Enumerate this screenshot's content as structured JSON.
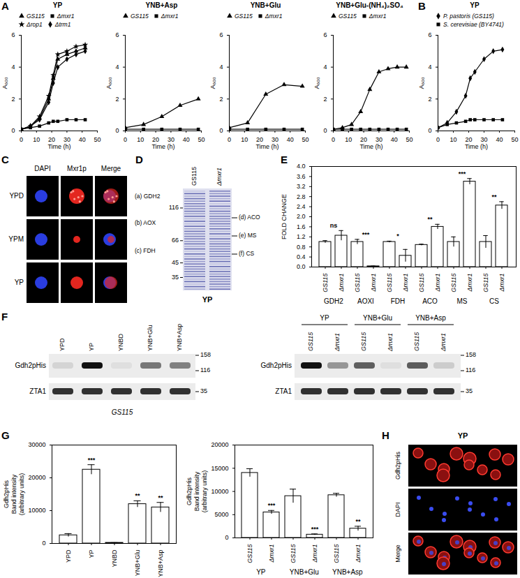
{
  "chart_data": [
    {
      "type": "line",
      "panel": "A",
      "title": "YP",
      "x_label": "Time (h)",
      "y_label": "A₆₀₀",
      "x": [
        0,
        6,
        12,
        18,
        21,
        24,
        30,
        36,
        42
      ],
      "series": [
        {
          "name": "GS115",
          "color": "#000000",
          "marker": "triangle",
          "values": [
            0.1,
            0.3,
            0.8,
            2.0,
            3.3,
            4.5,
            4.8,
            5.0,
            5.2
          ]
        },
        {
          "name": "Δmxr1",
          "color": "#000000",
          "marker": "square",
          "values": [
            0.1,
            0.2,
            0.3,
            0.5,
            0.6,
            0.6,
            0.7,
            0.7,
            0.7
          ]
        },
        {
          "name": "Δrop1",
          "color": "#000000",
          "marker": "star",
          "values": [
            0.1,
            0.3,
            0.9,
            2.2,
            3.5,
            4.8,
            5.0,
            5.3,
            5.4
          ]
        },
        {
          "name": "Δtrm1",
          "color": "#000000",
          "marker": "diamond",
          "values": [
            0.1,
            0.3,
            0.7,
            1.8,
            3.0,
            4.0,
            4.5,
            4.8,
            5.0
          ]
        }
      ],
      "xlim": [
        0,
        50
      ],
      "xticks": [
        0,
        10,
        20,
        30,
        40,
        50
      ],
      "ylim": [
        0,
        6
      ],
      "yticks": [
        0,
        2,
        4,
        6
      ],
      "legend": "top"
    },
    {
      "type": "line",
      "title": "YNB+Asp",
      "x_label": "Time (h)",
      "y_label": "A₆₀₀",
      "x": [
        0,
        12,
        24,
        36,
        48
      ],
      "series": [
        {
          "name": "GS115",
          "color": "#000000",
          "marker": "triangle",
          "values": [
            0.2,
            0.4,
            0.9,
            1.6,
            2.0
          ]
        },
        {
          "name": "Δmxr1",
          "color": "#000000",
          "marker": "square",
          "values": [
            0.1,
            0.1,
            0.1,
            0.1,
            0.1
          ]
        }
      ],
      "xlim": [
        0,
        50
      ],
      "xticks": [
        0,
        10,
        20,
        30,
        40,
        50
      ],
      "ylim": [
        0,
        6
      ],
      "yticks": [
        0,
        2,
        4,
        6
      ],
      "legend": "top"
    },
    {
      "type": "line",
      "title": "YNB+Glu",
      "x_label": "Time (h)",
      "y_label": "A₆₀₀",
      "x": [
        0,
        12,
        24,
        36,
        48
      ],
      "series": [
        {
          "name": "GS115",
          "color": "#000000",
          "marker": "triangle",
          "values": [
            0.2,
            0.5,
            2.3,
            2.9,
            2.8
          ]
        },
        {
          "name": "Δmxr1",
          "color": "#000000",
          "marker": "square",
          "values": [
            0.1,
            0.1,
            0.1,
            0.1,
            0.1
          ]
        }
      ],
      "xlim": [
        0,
        50
      ],
      "xticks": [
        0,
        10,
        20,
        30,
        40,
        50
      ],
      "ylim": [
        0,
        6
      ],
      "yticks": [
        0,
        2,
        4,
        6
      ],
      "legend": "top"
    },
    {
      "type": "line",
      "title": "YNB+Glu-(NH₄)₂SO₄",
      "x_label": "Time (h)",
      "y_label": "A₆₀₀",
      "x": [
        0,
        6,
        12,
        18,
        24,
        30,
        36,
        42,
        48
      ],
      "series": [
        {
          "name": "GS115",
          "color": "#000000",
          "marker": "triangle",
          "values": [
            0.1,
            0.2,
            0.4,
            1.2,
            2.6,
            3.7,
            3.9,
            4.0,
            4.0
          ]
        },
        {
          "name": "Δmxr1",
          "color": "#000000",
          "marker": "square",
          "values": [
            0.1,
            0.1,
            0.1,
            0.1,
            0.1,
            0.1,
            0.1,
            0.1,
            0.1
          ]
        }
      ],
      "xlim": [
        0,
        50
      ],
      "xticks": [
        0,
        10,
        20,
        30,
        40,
        50
      ],
      "ylim": [
        0,
        6
      ],
      "yticks": [
        0,
        2,
        4,
        6
      ],
      "legend": "top"
    },
    {
      "type": "line",
      "panel": "B",
      "title": "YP",
      "x_label": "Time (h)",
      "y_label": "A₆₀₀",
      "x": [
        0,
        6,
        12,
        18,
        21,
        24,
        30,
        36,
        42
      ],
      "series": [
        {
          "name": "P. pastoris (GS115)",
          "color": "#000000",
          "marker": "diamond",
          "values": [
            0.2,
            0.5,
            1.2,
            2.2,
            3.3,
            3.7,
            4.5,
            5.0,
            5.1
          ]
        },
        {
          "name": "S. cerevisiae (BY4741)",
          "color": "#000000",
          "marker": "square",
          "values": [
            0.2,
            0.4,
            0.5,
            0.6,
            0.7,
            0.7,
            0.7,
            0.7,
            0.7
          ]
        }
      ],
      "xlim": [
        0,
        50
      ],
      "xticks": [
        0,
        10,
        20,
        30,
        40,
        50
      ],
      "ylim": [
        0,
        6
      ],
      "yticks": [
        0,
        2,
        4,
        6
      ],
      "legend": "top"
    },
    {
      "type": "bar",
      "panel": "E",
      "y_label": "FOLD CHANGE",
      "categories": [
        "GS115",
        "Δmxr1",
        "GS115",
        "Δmxr1",
        "GS115",
        "Δmxr1",
        "GS115",
        "Δmxr1",
        "GS115",
        "Δmxr1",
        "GS115",
        "Δmxr1"
      ],
      "groups": [
        "GDH2",
        "AOXI",
        "FDH",
        "ACO",
        "MS",
        "CS"
      ],
      "values": [
        1.0,
        1.25,
        1.0,
        0.03,
        1.0,
        0.45,
        0.88,
        1.6,
        1.0,
        3.4,
        1.0,
        2.45
      ],
      "errors": [
        0.05,
        0.2,
        0.1,
        0.01,
        0.03,
        0.25,
        0.03,
        0.1,
        0.2,
        0.12,
        0.25,
        0.15
      ],
      "significance": [
        "ns",
        "***",
        "*",
        "**",
        "***",
        "**"
      ],
      "color": "#ffffff",
      "ylim": [
        0,
        4
      ],
      "yticks": [
        {
          "value": 0,
          "label": "0.0"
        },
        0.4,
        0.8,
        1.2,
        1.6,
        {
          "value": 2,
          "label": "2.0"
        },
        2.4,
        2.8,
        3.2,
        3.6,
        {
          "value": 4,
          "label": "4.0"
        }
      ]
    },
    {
      "type": "bar",
      "panel": "G",
      "y_label": "Gdh2pHis\nBand intensity\n(arbitrary units)",
      "categories": [
        "YPD",
        "YP",
        "YNBD",
        "YNB+Glu",
        "YNB+Asp"
      ],
      "values": [
        2500,
        22500,
        200,
        12000,
        11000
      ],
      "errors": [
        500,
        1500,
        50,
        1000,
        1500
      ],
      "significance": [
        null,
        "***",
        null,
        "**",
        "**"
      ],
      "color": "#ffffff",
      "ylim": [
        0,
        30000
      ],
      "yticks": [
        0,
        10000,
        20000,
        30000
      ]
    },
    {
      "type": "bar",
      "y_label": "Gdh2pHis\nBand intensity\n(arbitrary units)",
      "categories": [
        "GS115",
        "Δmxr1",
        "GS115",
        "Δmxr1",
        "GS115",
        "Δmxr1"
      ],
      "groups": [
        "YP",
        "YNB+Glu",
        "YNB+Asp"
      ],
      "values": [
        14000,
        5500,
        9000,
        700,
        9200,
        2000
      ],
      "errors": [
        900,
        400,
        1500,
        150,
        400,
        500
      ],
      "significance": [
        null,
        "***",
        null,
        "***",
        null,
        "**"
      ],
      "color": "#ffffff",
      "ylim": [
        0,
        20000
      ],
      "yticks": [
        0,
        5000,
        10000,
        15000,
        20000
      ]
    }
  ],
  "image_panels": {
    "C": {
      "panel": "C",
      "columns": [
        "DAPI",
        "Mxr1p",
        "Merge"
      ],
      "rows": [
        "YPD",
        "YPM",
        "YP"
      ]
    },
    "D": {
      "panel": "D",
      "lanes": [
        "GS115",
        "Δmxr1"
      ],
      "markers": [
        116,
        66,
        45,
        35
      ],
      "bands_left": [
        "(a) GDH2",
        "(b) AOX",
        "(c) FDH"
      ],
      "bands_right": [
        "(d) ACO",
        "(e) MS",
        "(f) CS"
      ],
      "caption": "YP"
    },
    "F": {
      "panel": "F",
      "left": {
        "lanes": [
          "YPD",
          "YP",
          "YNBD",
          "YNB+Glu",
          "YNB+Asp"
        ],
        "rows": [
          "Gdh2pHis",
          "ZTA1"
        ],
        "markers": [
          158,
          116,
          35
        ],
        "caption": "GS115"
      },
      "right": {
        "groups": [
          "YP",
          "YNB+Glu",
          "YNB+Asp"
        ],
        "lanes": [
          "GS115",
          "Δmxr1",
          "GS115",
          "Δmxr1",
          "GS115",
          "Δmxr1"
        ],
        "rows": [
          "Gdh2pHis",
          "ZTA1"
        ],
        "markers": [
          158,
          116,
          35
        ]
      }
    },
    "H": {
      "panel": "H",
      "title": "YP",
      "images": [
        "Gdh2pHis",
        "DAPI",
        "Merge"
      ]
    }
  }
}
